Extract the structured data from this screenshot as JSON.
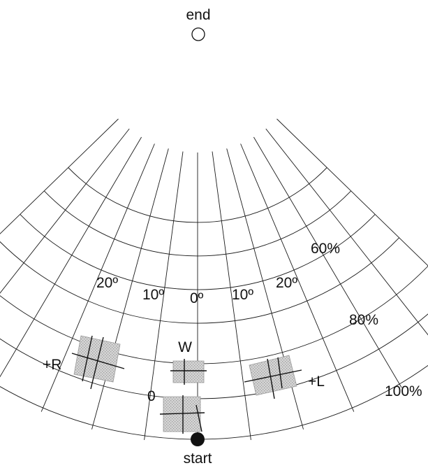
{
  "labels": {
    "end": "end",
    "start": "start",
    "pct_60": "60%",
    "pct_80": "80%",
    "pct_100": "100%",
    "deg_left_20": "20º",
    "deg_left_10": "10º",
    "deg_center_0": "0º",
    "deg_right_10": "10º",
    "deg_right_20": "20º",
    "target_w": "W",
    "target_r": "+R",
    "target_l": "+L",
    "target_0": "0"
  },
  "colors": {
    "ink": "#111111",
    "patch_fill": "#d4d4d4",
    "patch_dots": "#9c9c9c"
  }
}
